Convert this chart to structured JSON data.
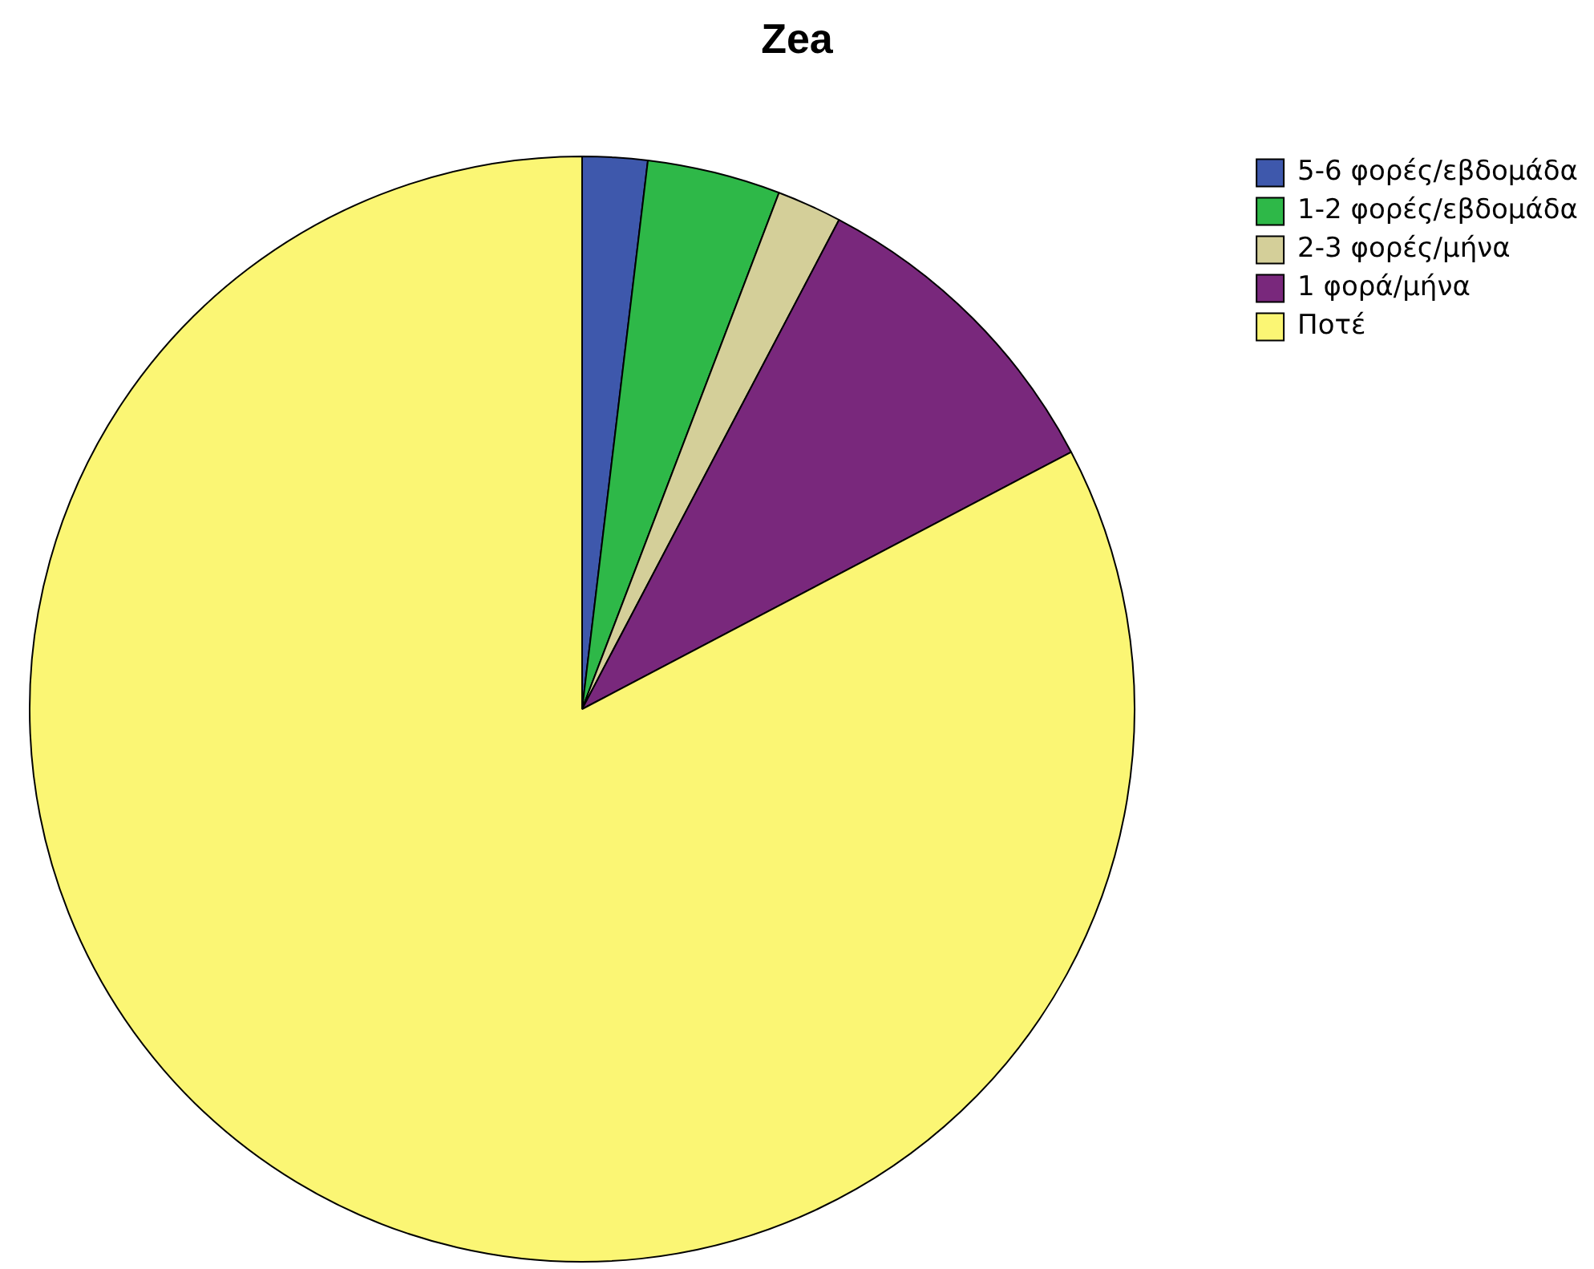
{
  "chart_data": {
    "type": "pie",
    "title": "Zea",
    "categories": [
      "5-6 φορές/εβδομάδα",
      "1-2 φορές/εβδομάδα",
      "2-3 φορές/μήνα",
      "1 φορά/μήνα",
      "Ποτέ"
    ],
    "values": [
      1.9,
      3.9,
      1.9,
      9.6,
      82.7
    ],
    "colors": [
      "#3e58ac",
      "#2eb848",
      "#d4cf99",
      "#79287c",
      "#fbf674"
    ],
    "legend": "top right"
  }
}
